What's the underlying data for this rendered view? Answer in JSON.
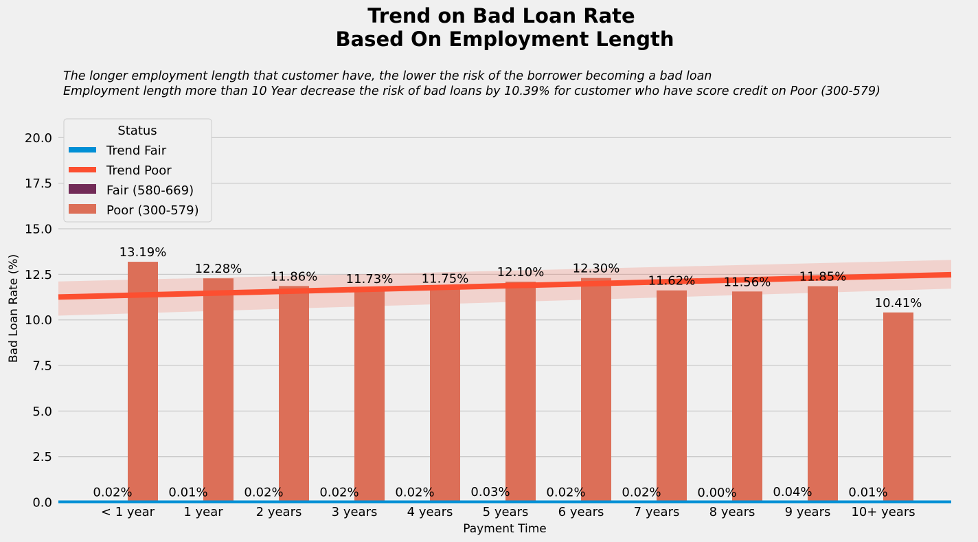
{
  "chart_data": {
    "type": "bar",
    "title_line1": "Trend on Bad Loan Rate",
    "title_line2": "Based On Employment Length",
    "subtitle_line1": "The longer employment length that customer have, the lower the risk of the borrower becoming a bad loan",
    "subtitle_line2": "Employment length more than 10 Year decrease the risk of bad loans by 10.39% for customer who have score credit on Poor (300-579)",
    "xlabel": "Payment Time",
    "ylabel": "Bad Loan Rate (%)",
    "ylim": [
      0,
      21.9
    ],
    "yticks": [
      0.0,
      2.5,
      5.0,
      7.5,
      10.0,
      12.5,
      15.0,
      17.5,
      20.0
    ],
    "grid": "horizontal",
    "categories": [
      "< 1 year",
      "1 year",
      "2 years",
      "3 years",
      "4 years",
      "5 years",
      "6 years",
      "7 years",
      "8 years",
      "9 years",
      "10+ years"
    ],
    "series": [
      {
        "name": "Fair (580-669)",
        "color": "#722b57",
        "values": [
          0.02,
          0.01,
          0.02,
          0.02,
          0.02,
          0.03,
          0.02,
          0.02,
          0.0,
          0.04,
          0.01
        ],
        "labels": [
          "0.02%",
          "0.01%",
          "0.02%",
          "0.02%",
          "0.02%",
          "0.03%",
          "0.02%",
          "0.02%",
          "0.00%",
          "0.04%",
          "0.01%"
        ]
      },
      {
        "name": "Poor (300-579)",
        "color": "#dc6f58",
        "values": [
          13.19,
          12.28,
          11.86,
          11.73,
          11.75,
          12.1,
          12.3,
          11.62,
          11.56,
          11.85,
          10.41
        ],
        "labels": [
          "13.19%",
          "12.28%",
          "11.86%",
          "11.73%",
          "11.75%",
          "12.10%",
          "12.30%",
          "11.62%",
          "11.56%",
          "11.85%",
          "10.41%"
        ]
      }
    ],
    "trends": [
      {
        "name": "Trend Fair",
        "color": "#008fd5",
        "start": 0.018,
        "end": 0.018
      },
      {
        "name": "Trend Poor",
        "color": "#fc4f30",
        "start": 11.35,
        "end": 12.39,
        "ci_start": [
          10.35,
          12.2
        ],
        "ci_end": [
          11.6,
          13.2
        ]
      }
    ],
    "legend": {
      "title": "Status",
      "position": "top-left",
      "entries": [
        "Trend Fair",
        "Trend Poor",
        "Fair (580-669)",
        "Poor (300-579)"
      ]
    }
  }
}
